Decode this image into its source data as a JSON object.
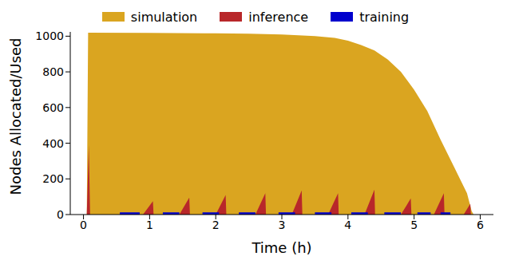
{
  "chart_data": {
    "type": "area",
    "x_label": "Time (h)",
    "y_label": "Nodes Allocated/Used",
    "xlim": [
      -0.2,
      6.2
    ],
    "xticks": [
      0,
      1,
      2,
      3,
      4,
      5,
      6
    ],
    "ylim": [
      0,
      1024
    ],
    "yticks": [
      0,
      200,
      400,
      600,
      800,
      1000
    ],
    "legend": "top",
    "series": [
      {
        "name": "simulation",
        "color": "#daa520",
        "x": [
          0.05,
          0.07,
          1,
          2,
          2.5,
          3,
          3.5,
          3.8,
          4,
          4.2,
          4.4,
          4.6,
          4.8,
          5,
          5.2,
          5.4,
          5.6,
          5.8,
          5.87,
          5.9
        ],
        "values": [
          0,
          1020,
          1018,
          1016,
          1014,
          1010,
          1000,
          990,
          975,
          950,
          920,
          870,
          800,
          700,
          580,
          420,
          270,
          120,
          20,
          0
        ]
      },
      {
        "name": "inference",
        "color": "#b8272a",
        "x": [
          0.05,
          0.08,
          0.1,
          0.9,
          1.05,
          1.06,
          1.45,
          1.6,
          1.61,
          2.0,
          2.15,
          2.16,
          2.6,
          2.75,
          2.76,
          3.15,
          3.3,
          3.31,
          3.7,
          3.85,
          3.86,
          4.25,
          4.4,
          4.41,
          4.8,
          4.95,
          4.96,
          5.3,
          5.45,
          5.46,
          5.75,
          5.85,
          5.86
        ],
        "values": [
          0,
          390,
          0,
          0,
          75,
          0,
          0,
          95,
          0,
          0,
          110,
          0,
          0,
          120,
          0,
          0,
          135,
          0,
          0,
          120,
          0,
          0,
          140,
          0,
          0,
          90,
          0,
          0,
          120,
          0,
          0,
          60,
          0
        ]
      },
      {
        "name": "training",
        "color": "#0000cd",
        "x": [
          0.55,
          0.55,
          0.85,
          0.85,
          1.2,
          1.2,
          1.45,
          1.45,
          1.8,
          1.8,
          2.05,
          2.05,
          2.35,
          2.35,
          2.6,
          2.6,
          2.95,
          2.95,
          3.2,
          3.2,
          3.5,
          3.5,
          3.75,
          3.75,
          4.05,
          4.05,
          4.3,
          4.3,
          4.55,
          4.55,
          4.8,
          4.8,
          5.05,
          5.05,
          5.25,
          5.25,
          5.4,
          5.4,
          5.55,
          5.55
        ],
        "values": [
          0,
          12,
          12,
          0,
          0,
          12,
          12,
          0,
          0,
          12,
          12,
          0,
          0,
          12,
          12,
          0,
          0,
          12,
          12,
          0,
          0,
          12,
          12,
          0,
          0,
          12,
          12,
          0,
          0,
          12,
          12,
          0,
          0,
          12,
          12,
          0,
          0,
          12,
          12,
          0
        ]
      }
    ]
  }
}
